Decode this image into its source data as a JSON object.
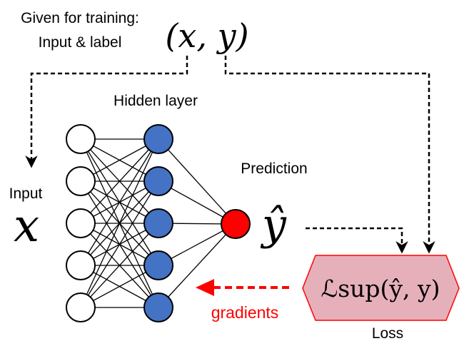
{
  "labels": {
    "given_line1": "Given for training:",
    "given_line2": "Input & label",
    "pair": "(x, y)",
    "hidden_layer": "Hidden layer",
    "prediction": "Prediction",
    "input": "Input",
    "input_symbol": "x",
    "prediction_symbol": "ŷ",
    "loss_formula": "ℒsup(ŷ, y)",
    "loss": "Loss",
    "gradients": "gradients"
  },
  "network": {
    "input_nodes": 5,
    "hidden_nodes": 5,
    "output_nodes": 1
  },
  "colors": {
    "input_node": "#ffffff",
    "hidden_node": "#4472c4",
    "output_node": "#ff0000",
    "loss_fill": "#e6b0bb",
    "loss_stroke": "#ff0000",
    "gradient_arrow": "#ff0000",
    "gradient_text": "#ff0000",
    "dashed": "#000000"
  }
}
